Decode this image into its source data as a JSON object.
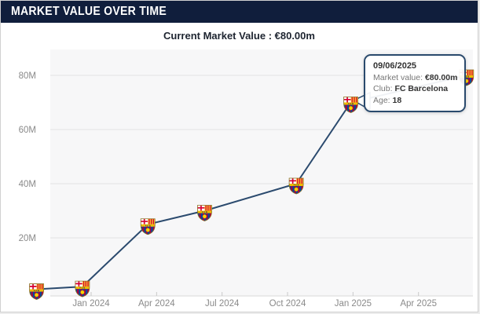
{
  "header": {
    "title": "MARKET VALUE OVER TIME"
  },
  "subtitle": "Current Market Value : €80.00m",
  "tooltip": {
    "date": "09/06/2025",
    "market_value_label": "Market value:",
    "market_value": "€80.00m",
    "club_label": "Club:",
    "club": "FC Barcelona",
    "age_label": "Age:",
    "age": "18"
  },
  "colors": {
    "header_bg": "#101e3c",
    "subtitle_text": "#1d2430",
    "line_color": "#2b4a6e",
    "tooltip_border": "#2a4a6d",
    "plot_bg": "#f7f7f8",
    "grid_line": "#e3e3e3",
    "axis_text": "#8a8a8a"
  },
  "chart_data": {
    "type": "line",
    "title": "",
    "xlabel": "",
    "ylabel": "",
    "grid": true,
    "legend": false,
    "ylim": [
      0,
      88
    ],
    "y_unit": "€ million",
    "x_unit": "months after Jan 2024 (estimated from point positions)",
    "y_ticks": [
      {
        "label": "20M",
        "value": 20
      },
      {
        "label": "40M",
        "value": 40
      },
      {
        "label": "60M",
        "value": 60
      },
      {
        "label": "80M",
        "value": 80
      }
    ],
    "x_ticks": [
      {
        "label": "Jan 2024",
        "m": 0
      },
      {
        "label": "Apr 2024",
        "m": 3
      },
      {
        "label": "Jul 2024",
        "m": 6
      },
      {
        "label": "Oct 2024",
        "m": 9
      },
      {
        "label": "Jan 2025",
        "m": 12
      },
      {
        "label": "Apr 2025",
        "m": 15
      }
    ],
    "series": [
      {
        "name": "Market value",
        "marker": "fc-barcelona-crest",
        "points": [
          {
            "m": -2.5,
            "value_m": 1
          },
          {
            "m": -0.4,
            "value_m": 2
          },
          {
            "m": 2.6,
            "value_m": 25
          },
          {
            "m": 5.2,
            "value_m": 30
          },
          {
            "m": 9.4,
            "value_m": 40
          },
          {
            "m": 11.9,
            "value_m": 70
          },
          {
            "m": 17.2,
            "value_m": 80
          }
        ],
        "highlighted_point_index": 6,
        "highlighted_point_value": "€80.00m"
      }
    ]
  }
}
